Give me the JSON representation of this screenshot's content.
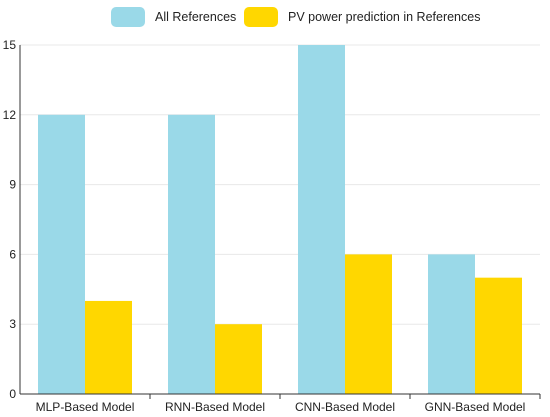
{
  "chart_data": {
    "type": "bar",
    "categories": [
      "MLP-Based Model",
      "RNN-Based Model",
      "CNN-Based Model",
      "GNN-Based Model"
    ],
    "series": [
      {
        "name": "All References",
        "values": [
          12,
          12,
          15,
          6
        ],
        "color": "#9ad9e8"
      },
      {
        "name": "PV power prediction in References",
        "values": [
          4,
          3,
          6,
          5
        ],
        "color": "#ffd700"
      }
    ],
    "title": "",
    "xlabel": "",
    "ylabel": "",
    "ylim": [
      0,
      15
    ],
    "yticks": [
      0,
      3,
      6,
      9,
      12,
      15
    ],
    "grid": true,
    "legend_position": "top-center"
  }
}
